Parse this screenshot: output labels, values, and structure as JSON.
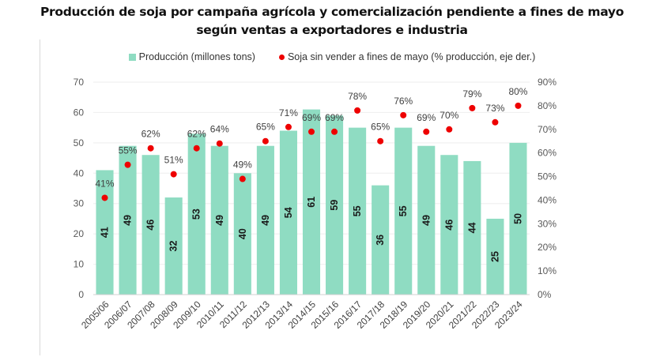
{
  "title_line1": "Producción de soja por campaña agrícola y comercialización pendiente a fines de mayo",
  "title_line2": "según ventas a exportadores e industria",
  "colors": {
    "bars": "#8fdcc2",
    "dots": "#ee0000",
    "grid": "#eeeeee"
  },
  "chart_data": {
    "type": "bar",
    "title": "Producción de soja por campaña agrícola y comercialización pendiente a fines de mayo según ventas a exportadores e industria",
    "categories": [
      "2005/06",
      "2006/07",
      "2007/08",
      "2008/09",
      "2009/10",
      "2010/11",
      "2011/12",
      "2012/13",
      "2013/14",
      "2014/15",
      "2015/16",
      "2016/17",
      "2017/18",
      "2018/19",
      "2019/20",
      "2020/21",
      "2021/22",
      "2022/23",
      "2023/24"
    ],
    "series": [
      {
        "name": "Producción (millones tons)",
        "type": "bar",
        "axis": "left",
        "values": [
          41,
          49,
          46,
          32,
          53,
          49,
          40,
          49,
          54,
          61,
          59,
          55,
          36,
          55,
          49,
          46,
          44,
          25,
          50
        ]
      },
      {
        "name": "Soja sin vender a fines de mayo (% producción, eje der.)",
        "type": "scatter",
        "axis": "right",
        "values": [
          41,
          55,
          62,
          51,
          62,
          64,
          49,
          65,
          71,
          69,
          69,
          78,
          65,
          76,
          69,
          70,
          79,
          73,
          80
        ]
      }
    ],
    "legend": [
      "Producción (millones tons)",
      "Soja sin vender a fines de mayo (% producción, eje der.)"
    ],
    "legend_position": "top",
    "y_left": {
      "ticks": [
        "0",
        "10",
        "20",
        "30",
        "40",
        "50",
        "60",
        "70"
      ],
      "ylim": [
        0,
        70
      ]
    },
    "y_right": {
      "ticks": [
        "0%",
        "10%",
        "20%",
        "30%",
        "40%",
        "50%",
        "60%",
        "70%",
        "80%",
        "90%"
      ],
      "ylim": [
        0,
        90
      ]
    },
    "xlabel": "",
    "ylabel": "",
    "grid": true
  }
}
